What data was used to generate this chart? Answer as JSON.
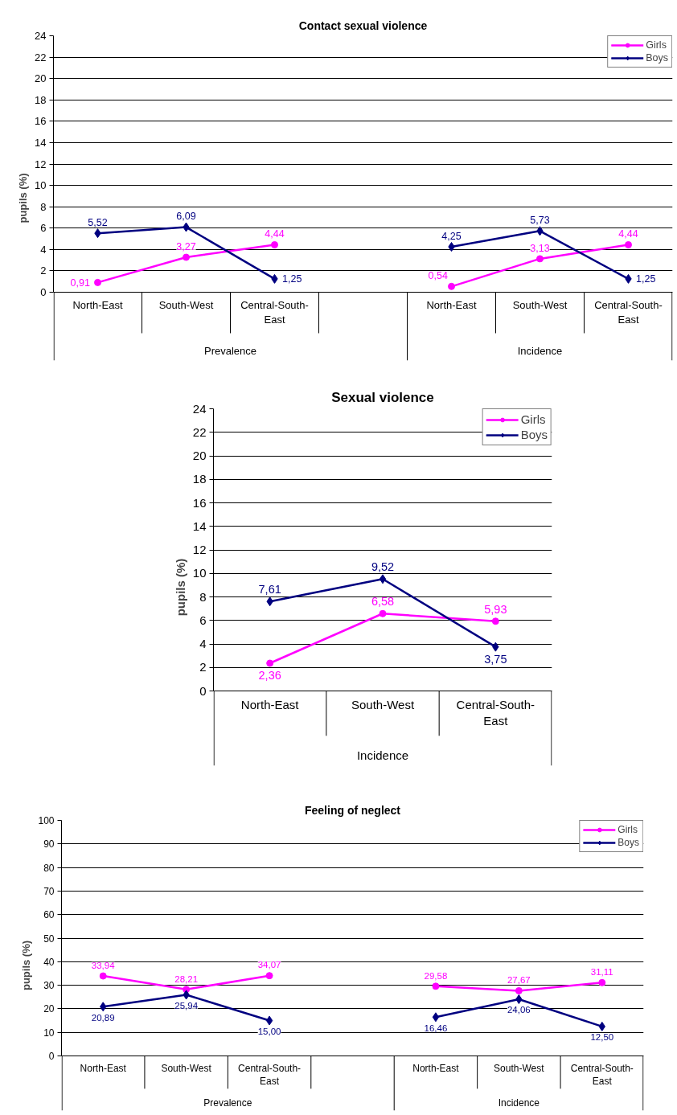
{
  "chart_data": [
    {
      "type": "line",
      "title": "Contact sexual violence",
      "ylabel": "pupils (%)",
      "categories": [
        "North-East",
        "South-West",
        "Central-South-East",
        null,
        "North-East",
        "South-West",
        "Central-South-East"
      ],
      "series": [
        {
          "name": "Girls",
          "color": "#ff00ff",
          "marker": "circle",
          "values": [
            0.91,
            3.27,
            4.44,
            null,
            0.54,
            3.13,
            4.44
          ],
          "value_labels": [
            "0,91",
            "3,27",
            "4,44",
            null,
            "0,54",
            "3,13",
            "4,44"
          ]
        },
        {
          "name": "Boys",
          "color": "#000080",
          "marker": "diamond",
          "values": [
            5.52,
            6.09,
            1.25,
            null,
            4.25,
            5.73,
            1.25
          ],
          "value_labels": [
            "5,52",
            "6,09",
            "1,25",
            null,
            "4,25",
            "5,73",
            "1,25"
          ]
        }
      ],
      "ylim": [
        0,
        24
      ],
      "yticks": [
        0,
        2,
        4,
        6,
        8,
        10,
        12,
        14,
        16,
        18,
        20,
        22,
        24
      ],
      "grid": "y",
      "legend": "top right",
      "line_style": "solid",
      "annotations": [
        "Prevalence",
        "Incidence"
      ]
    },
    {
      "type": "line",
      "title": "Sexual violence",
      "ylabel": "pupils (%)",
      "categories": [
        "North-East",
        "South-West",
        "Central-South-East"
      ],
      "series": [
        {
          "name": "Girls",
          "color": "#ff00ff",
          "marker": "circle",
          "values": [
            2.36,
            6.58,
            5.93
          ],
          "value_labels": [
            "2,36",
            "6,58",
            "5,93"
          ]
        },
        {
          "name": "Boys",
          "color": "#000080",
          "marker": "diamond",
          "values": [
            7.61,
            9.52,
            3.75
          ],
          "value_labels": [
            "7,61",
            "9,52",
            "3,75"
          ]
        }
      ],
      "ylim": [
        0,
        24
      ],
      "yticks": [
        0,
        2,
        4,
        6,
        8,
        10,
        12,
        14,
        16,
        18,
        20,
        22,
        24
      ],
      "grid": "y",
      "legend": "top right",
      "line_style": "solid",
      "annotations": [
        "Incidence"
      ]
    },
    {
      "type": "line",
      "title": "Feeling of neglect",
      "ylabel": "pupils (%)",
      "categories": [
        "North-East",
        "South-West",
        "Central-South-East",
        null,
        "North-East",
        "South-West",
        "Central-South-East"
      ],
      "series": [
        {
          "name": "Girls",
          "color": "#ff00ff",
          "marker": "circle",
          "values": [
            33.94,
            28.21,
            34.07,
            null,
            29.58,
            27.67,
            31.11
          ],
          "value_labels": [
            "33,94",
            "28,21",
            "34,07",
            null,
            "29,58",
            "27,67",
            "31,11"
          ]
        },
        {
          "name": "Boys",
          "color": "#000080",
          "marker": "diamond",
          "values": [
            20.89,
            25.94,
            15.0,
            null,
            16.46,
            24.06,
            12.5
          ],
          "value_labels": [
            "20,89",
            "25,94",
            "15,00",
            null,
            "16,46",
            "24,06",
            "12,50"
          ]
        }
      ],
      "ylim": [
        0,
        100
      ],
      "yticks": [
        0,
        10,
        20,
        30,
        40,
        50,
        60,
        70,
        80,
        90,
        100
      ],
      "grid": "y",
      "legend": "top right",
      "line_style": "solid",
      "annotations": [
        "Prevalence",
        "Incidence"
      ]
    }
  ]
}
